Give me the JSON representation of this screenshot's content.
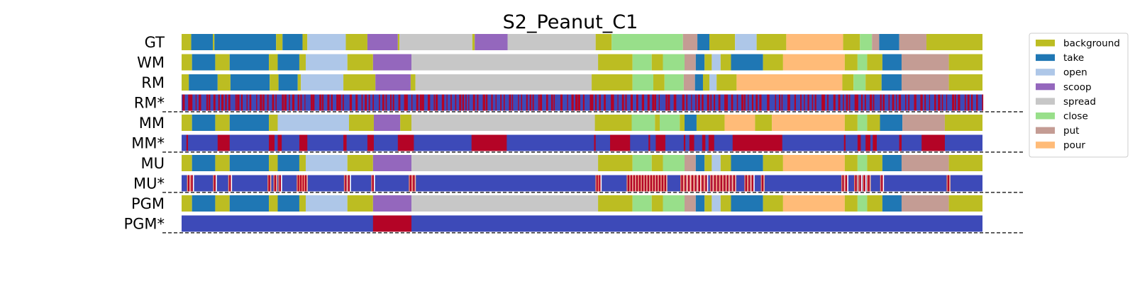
{
  "chart_data": {
    "type": "segmentation",
    "title": "S2_Peanut_C1",
    "x_range": [
      0,
      100
    ],
    "classes": [
      {
        "name": "background",
        "color": "#bcbd22"
      },
      {
        "name": "take",
        "color": "#1f77b4"
      },
      {
        "name": "open",
        "color": "#aec7e8"
      },
      {
        "name": "scoop",
        "color": "#9467bd"
      },
      {
        "name": "spread",
        "color": "#c7c7c7"
      },
      {
        "name": "close",
        "color": "#98df8a"
      },
      {
        "name": "put",
        "color": "#c49c94"
      },
      {
        "name": "pour",
        "color": "#ffbb78"
      }
    ],
    "confidence_colors": {
      "low": "#3d4ab8",
      "high": "#b40426",
      "mid": "#ee8468"
    },
    "rows": [
      {
        "label": "GT",
        "kind": "segments",
        "segments": [
          [
            "background",
            0,
            1.2
          ],
          [
            "take",
            1.2,
            3.9
          ],
          [
            "background",
            3.9,
            4.1
          ],
          [
            "take",
            4.1,
            11.8
          ],
          [
            "background",
            11.8,
            12.6
          ],
          [
            "take",
            12.6,
            15.1
          ],
          [
            "background",
            15.1,
            15.7
          ],
          [
            "open",
            15.7,
            20.5
          ],
          [
            "background",
            20.5,
            23.2
          ],
          [
            "scoop",
            23.2,
            27.0
          ],
          [
            "background",
            27.0,
            27.2
          ],
          [
            "spread",
            27.2,
            36.3
          ],
          [
            "background",
            36.3,
            36.6
          ],
          [
            "scoop",
            36.6,
            40.7
          ],
          [
            "spread",
            40.7,
            51.7
          ],
          [
            "background",
            51.7,
            53.7
          ],
          [
            "close",
            53.7,
            62.6
          ],
          [
            "put",
            62.6,
            64.4
          ],
          [
            "take",
            64.4,
            65.9
          ],
          [
            "background",
            65.9,
            69.1
          ],
          [
            "open",
            69.1,
            71.8
          ],
          [
            "background",
            71.8,
            75.5
          ],
          [
            "pour",
            75.5,
            82.6
          ],
          [
            "background",
            82.6,
            84.7
          ],
          [
            "close",
            84.7,
            86.2
          ],
          [
            "put",
            86.2,
            87.1
          ],
          [
            "take",
            87.1,
            89.6
          ],
          [
            "put",
            89.6,
            93.0
          ],
          [
            "background",
            93.0,
            100
          ]
        ]
      },
      {
        "label": "WM",
        "kind": "segments",
        "segments": [
          [
            "background",
            0,
            1.3
          ],
          [
            "take",
            1.3,
            4.2
          ],
          [
            "background",
            4.2,
            6.0
          ],
          [
            "take",
            6.0,
            10.9
          ],
          [
            "background",
            10.9,
            12.0
          ],
          [
            "take",
            12.0,
            14.7
          ],
          [
            "background",
            14.7,
            15.5
          ],
          [
            "open",
            15.5,
            20.7
          ],
          [
            "background",
            20.7,
            23.9
          ],
          [
            "scoop",
            23.9,
            28.7
          ],
          [
            "spread",
            28.7,
            52.0
          ],
          [
            "background",
            52.0,
            56.3
          ],
          [
            "close",
            56.3,
            58.7
          ],
          [
            "background",
            58.7,
            60.1
          ],
          [
            "close",
            60.1,
            62.8
          ],
          [
            "put",
            62.8,
            64.2
          ],
          [
            "take",
            64.2,
            65.3
          ],
          [
            "background",
            65.3,
            66.2
          ],
          [
            "open",
            66.2,
            67.3
          ],
          [
            "background",
            67.3,
            68.6
          ],
          [
            "take",
            68.6,
            72.6
          ],
          [
            "background",
            72.6,
            75.1
          ],
          [
            "pour",
            75.1,
            82.8
          ],
          [
            "background",
            82.8,
            84.4
          ],
          [
            "close",
            84.4,
            85.6
          ],
          [
            "background",
            85.6,
            87.5
          ],
          [
            "take",
            87.5,
            89.9
          ],
          [
            "put",
            89.9,
            95.8
          ],
          [
            "background",
            95.8,
            100
          ]
        ]
      },
      {
        "label": "RM",
        "kind": "segments",
        "segments": [
          [
            "background",
            0,
            0.9
          ],
          [
            "take",
            0.9,
            4.5
          ],
          [
            "background",
            4.5,
            6.1
          ],
          [
            "take",
            6.1,
            11.0
          ],
          [
            "background",
            11.0,
            12.1
          ],
          [
            "take",
            12.1,
            14.5
          ],
          [
            "background",
            14.5,
            14.9
          ],
          [
            "open",
            14.9,
            20.2
          ],
          [
            "background",
            20.2,
            24.2
          ],
          [
            "scoop",
            24.2,
            28.6
          ],
          [
            "background",
            28.6,
            29.2
          ],
          [
            "spread",
            29.2,
            51.2
          ],
          [
            "background",
            51.2,
            56.3
          ],
          [
            "close",
            56.3,
            58.9
          ],
          [
            "background",
            58.9,
            60.3
          ],
          [
            "close",
            60.3,
            62.7
          ],
          [
            "put",
            62.7,
            64.1
          ],
          [
            "take",
            64.1,
            65.1
          ],
          [
            "background",
            65.1,
            65.9
          ],
          [
            "open",
            65.9,
            66.8
          ],
          [
            "background",
            66.8,
            69.3
          ],
          [
            "pour",
            69.3,
            82.5
          ],
          [
            "background",
            82.5,
            83.9
          ],
          [
            "close",
            83.9,
            85.4
          ],
          [
            "background",
            85.4,
            87.4
          ],
          [
            "take",
            87.4,
            89.9
          ],
          [
            "put",
            89.9,
            95.8
          ],
          [
            "background",
            95.8,
            100
          ]
        ]
      },
      {
        "label": "RM*",
        "kind": "confidence",
        "pattern": "dense",
        "count": 190,
        "seed": 7
      },
      {
        "label": "MM",
        "kind": "segments",
        "segments": [
          [
            "background",
            0,
            1.3
          ],
          [
            "take",
            1.3,
            4.2
          ],
          [
            "background",
            4.2,
            6.0
          ],
          [
            "take",
            6.0,
            10.9
          ],
          [
            "background",
            10.9,
            12.0
          ],
          [
            "open",
            12.0,
            20.9
          ],
          [
            "background",
            20.9,
            24.0
          ],
          [
            "scoop",
            24.0,
            27.3
          ],
          [
            "background",
            27.3,
            28.7
          ],
          [
            "spread",
            28.7,
            51.6
          ],
          [
            "background",
            51.6,
            56.2
          ],
          [
            "close",
            56.2,
            59.1
          ],
          [
            "background",
            59.1,
            59.7
          ],
          [
            "close",
            59.7,
            62.2
          ],
          [
            "background",
            62.2,
            62.8
          ],
          [
            "take",
            62.8,
            64.3
          ],
          [
            "background",
            64.3,
            67.8
          ],
          [
            "pour",
            67.8,
            71.6
          ],
          [
            "background",
            71.6,
            73.7
          ],
          [
            "pour",
            73.7,
            82.8
          ],
          [
            "background",
            82.8,
            84.4
          ],
          [
            "close",
            84.4,
            85.6
          ],
          [
            "background",
            85.6,
            87.2
          ],
          [
            "take",
            87.2,
            90.0
          ],
          [
            "put",
            90.0,
            95.3
          ],
          [
            "background",
            95.3,
            100
          ]
        ]
      },
      {
        "label": "MM*",
        "kind": "confidence",
        "spans": [
          [
            0.6,
            0.8
          ],
          [
            4.5,
            6.0
          ],
          [
            10.9,
            11.6
          ],
          [
            12.0,
            12.5
          ],
          [
            14.7,
            15.7
          ],
          [
            20.2,
            20.6
          ],
          [
            23.2,
            24.0
          ],
          [
            27.0,
            29.0
          ],
          [
            36.2,
            40.6
          ],
          [
            51.5,
            51.7
          ],
          [
            53.5,
            56.0
          ],
          [
            58.3,
            58.5
          ],
          [
            59.2,
            60.4
          ],
          [
            62.7,
            62.9
          ],
          [
            63.4,
            64.0
          ],
          [
            65.0,
            65.4
          ],
          [
            65.8,
            66.5
          ],
          [
            68.8,
            75.0
          ],
          [
            82.7,
            82.9
          ],
          [
            84.4,
            84.8
          ],
          [
            85.4,
            86.0
          ],
          [
            86.3,
            86.8
          ],
          [
            89.6,
            89.9
          ],
          [
            92.4,
            95.3
          ]
        ]
      },
      {
        "label": "MU",
        "kind": "segments",
        "segments": [
          [
            "background",
            0,
            1.3
          ],
          [
            "take",
            1.3,
            4.2
          ],
          [
            "background",
            4.2,
            6.0
          ],
          [
            "take",
            6.0,
            10.9
          ],
          [
            "background",
            10.9,
            12.0
          ],
          [
            "take",
            12.0,
            14.7
          ],
          [
            "background",
            14.7,
            15.5
          ],
          [
            "open",
            15.5,
            20.7
          ],
          [
            "background",
            20.7,
            23.9
          ],
          [
            "scoop",
            23.9,
            28.7
          ],
          [
            "spread",
            28.7,
            52.0
          ],
          [
            "background",
            52.0,
            56.3
          ],
          [
            "close",
            56.3,
            58.7
          ],
          [
            "background",
            58.7,
            60.1
          ],
          [
            "close",
            60.1,
            62.8
          ],
          [
            "put",
            62.8,
            64.2
          ],
          [
            "take",
            64.2,
            65.3
          ],
          [
            "background",
            65.3,
            66.2
          ],
          [
            "open",
            66.2,
            67.3
          ],
          [
            "background",
            67.3,
            68.6
          ],
          [
            "take",
            68.6,
            72.6
          ],
          [
            "background",
            72.6,
            75.1
          ],
          [
            "pour",
            75.1,
            82.8
          ],
          [
            "background",
            82.8,
            84.4
          ],
          [
            "close",
            84.4,
            85.6
          ],
          [
            "background",
            85.6,
            87.5
          ],
          [
            "take",
            87.5,
            89.9
          ],
          [
            "put",
            89.9,
            95.8
          ],
          [
            "background",
            95.8,
            100
          ]
        ]
      },
      {
        "label": "MU*",
        "kind": "confidence",
        "pattern": "clusters",
        "clusters": [
          [
            0.9,
            1.3,
            2
          ],
          [
            4.0,
            4.3,
            1
          ],
          [
            5.9,
            6.2,
            1
          ],
          [
            10.8,
            11.1,
            1
          ],
          [
            11.7,
            12.3,
            2
          ],
          [
            14.6,
            15.5,
            4
          ],
          [
            20.5,
            20.9,
            2
          ],
          [
            23.8,
            24.0,
            1
          ],
          [
            28.6,
            29.0,
            2
          ],
          [
            51.9,
            52.2,
            2
          ],
          [
            55.8,
            60.4,
            14
          ],
          [
            62.5,
            65.5,
            8
          ],
          [
            66.2,
            69.0,
            8
          ],
          [
            70.5,
            71.3,
            3
          ],
          [
            72.4,
            72.7,
            1
          ],
          [
            82.6,
            83.0,
            2
          ],
          [
            84.2,
            85.8,
            4
          ],
          [
            87.3,
            87.6,
            1
          ],
          [
            95.6,
            95.9,
            1
          ]
        ]
      },
      {
        "label": "PGM",
        "kind": "segments",
        "segments": [
          [
            "background",
            0,
            1.3
          ],
          [
            "take",
            1.3,
            4.2
          ],
          [
            "background",
            4.2,
            6.0
          ],
          [
            "take",
            6.0,
            10.9
          ],
          [
            "background",
            10.9,
            12.0
          ],
          [
            "take",
            12.0,
            14.7
          ],
          [
            "background",
            14.7,
            15.5
          ],
          [
            "open",
            15.5,
            20.7
          ],
          [
            "background",
            20.7,
            23.9
          ],
          [
            "scoop",
            23.9,
            28.7
          ],
          [
            "spread",
            28.7,
            52.0
          ],
          [
            "background",
            52.0,
            56.3
          ],
          [
            "close",
            56.3,
            58.7
          ],
          [
            "background",
            58.7,
            60.1
          ],
          [
            "close",
            60.1,
            62.8
          ],
          [
            "put",
            62.8,
            64.2
          ],
          [
            "take",
            64.2,
            65.3
          ],
          [
            "background",
            65.3,
            66.2
          ],
          [
            "open",
            66.2,
            67.3
          ],
          [
            "background",
            67.3,
            68.6
          ],
          [
            "take",
            68.6,
            72.6
          ],
          [
            "background",
            72.6,
            75.1
          ],
          [
            "pour",
            75.1,
            82.8
          ],
          [
            "background",
            82.8,
            84.4
          ],
          [
            "close",
            84.4,
            85.6
          ],
          [
            "background",
            85.6,
            87.5
          ],
          [
            "take",
            87.5,
            89.9
          ],
          [
            "put",
            89.9,
            95.8
          ],
          [
            "background",
            95.8,
            100
          ]
        ]
      },
      {
        "label": "PGM*",
        "kind": "confidence",
        "spans": [
          [
            23.9,
            28.7
          ]
        ]
      }
    ]
  }
}
